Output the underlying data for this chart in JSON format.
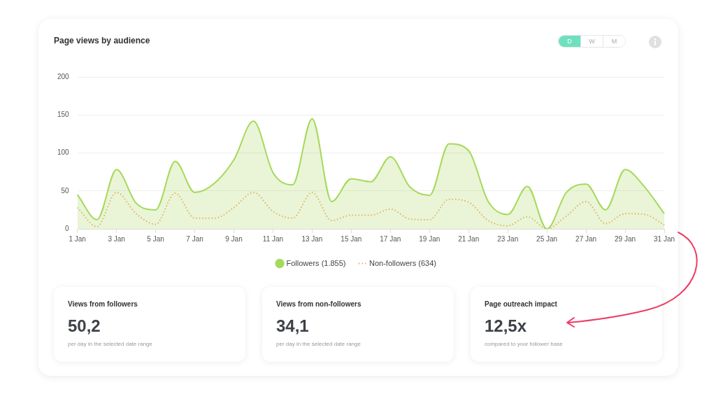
{
  "chart_data": [
    {
      "type": "line",
      "title": "Page views by audience",
      "categories": [
        "1 Jan",
        null,
        "3 Jan",
        null,
        "5 Jan",
        null,
        "7 Jan",
        null,
        "9 Jan",
        null,
        "11 Jan",
        null,
        "13 Jan",
        null,
        "15 Jan",
        null,
        "17 Jan",
        null,
        "19 Jan",
        null,
        "21 Jan",
        null,
        "23 Jan",
        null,
        "25 Jan",
        null,
        "27 Jan",
        null,
        "29 Jan",
        null,
        "31 Jan"
      ],
      "series": [
        {
          "name": "Followers (1.855)",
          "type": "area",
          "color": "#a6d95b",
          "line_style": "solid",
          "values": [
            45,
            12,
            78,
            34,
            25,
            89,
            48,
            60,
            91,
            142,
            74,
            58,
            145,
            36,
            66,
            62,
            95,
            55,
            44,
            112,
            103,
            36,
            19,
            56,
            0,
            48,
            59,
            25,
            78,
            55,
            20
          ]
        },
        {
          "name": "Non-followers (634)",
          "type": "line",
          "color": "#f5a36b",
          "line_style": "dotted",
          "values": [
            28,
            3,
            48,
            20,
            6,
            47,
            14,
            14,
            28,
            48,
            23,
            14,
            48,
            11,
            18,
            18,
            26,
            13,
            12,
            39,
            35,
            11,
            4,
            16,
            0,
            17,
            36,
            7,
            20,
            19,
            5
          ]
        }
      ],
      "ylim": [
        0,
        200
      ],
      "yticks": [
        0,
        50,
        100,
        150,
        200
      ],
      "grid": "y",
      "legend": "bottom",
      "marker": "none",
      "annotations": [
        "D",
        "W",
        "M"
      ]
    },
    {
      "type": "other",
      "title": "Views from followers",
      "annotations": [
        "50,2",
        "per day in the selected date range"
      ]
    },
    {
      "type": "other",
      "title": "Views from non-followers",
      "annotations": [
        "34,1",
        "per day in the selected date range"
      ]
    },
    {
      "type": "other",
      "title": "Page outreach impact",
      "annotations": [
        "12,5x",
        "compared to your follower base"
      ]
    }
  ]
}
